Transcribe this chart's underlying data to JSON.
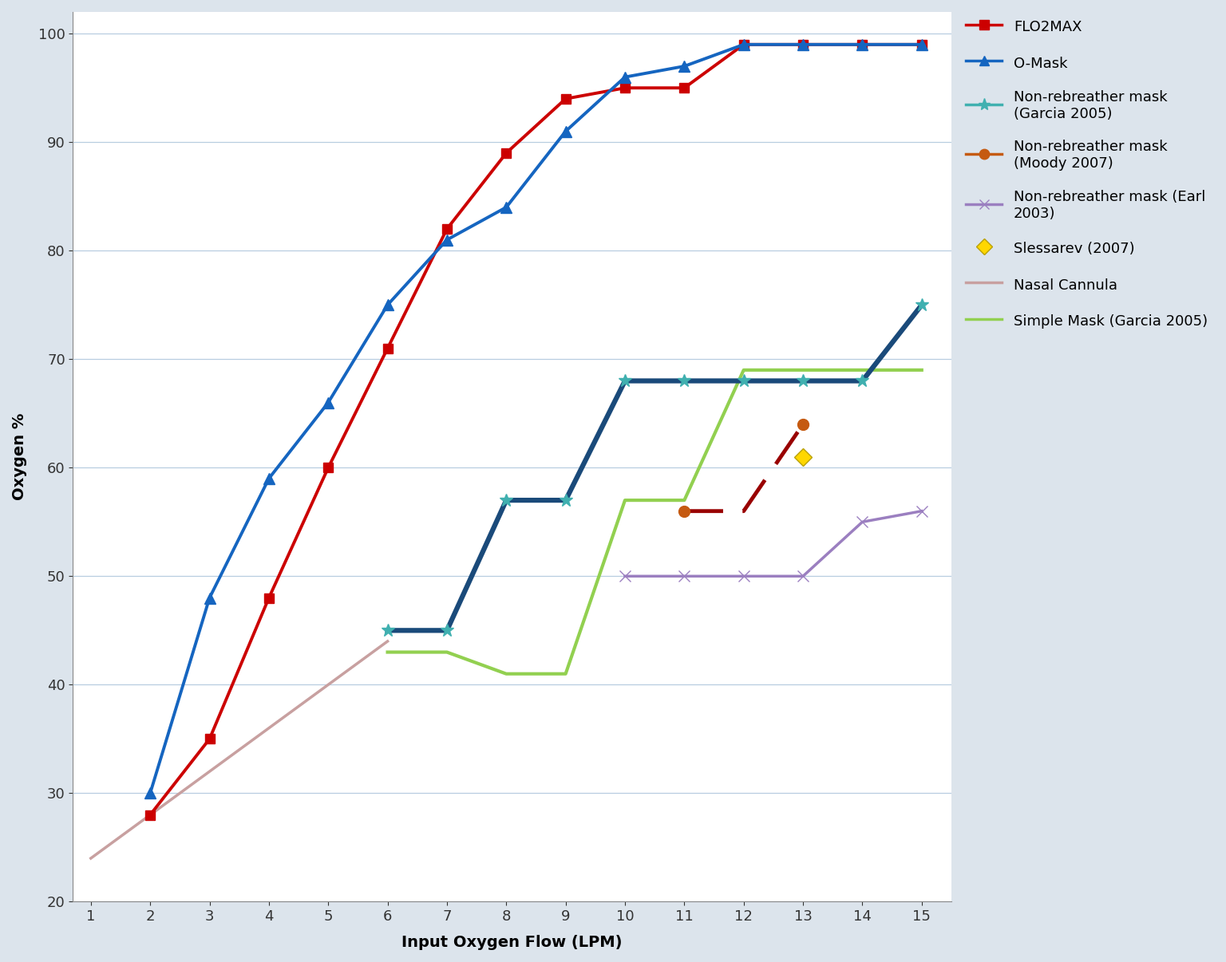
{
  "xlabel": "Input Oxygen Flow (LPM)",
  "ylabel": "Oxygen %",
  "xlim_min": 0.7,
  "xlim_max": 15.5,
  "ylim_min": 20,
  "ylim_max": 102,
  "xticks": [
    1,
    2,
    3,
    4,
    5,
    6,
    7,
    8,
    9,
    10,
    11,
    12,
    13,
    14,
    15
  ],
  "yticks": [
    20,
    30,
    40,
    50,
    60,
    70,
    80,
    90,
    100
  ],
  "fig_bg": "#dce4ec",
  "plot_bg": "#ffffff",
  "grid_color": "#b8cde0",
  "flo2max": {
    "x": [
      2,
      3,
      4,
      5,
      6,
      7,
      8,
      9,
      10,
      11,
      12,
      13,
      14,
      15
    ],
    "y": [
      28,
      35,
      48,
      60,
      71,
      82,
      89,
      94,
      95,
      95,
      99,
      99,
      99,
      99
    ],
    "color": "#cc0000",
    "lw": 2.8,
    "marker": "s",
    "ms": 8,
    "label": "FLO2MAX"
  },
  "omask": {
    "x": [
      2,
      3,
      4,
      5,
      6,
      7,
      8,
      9,
      10,
      11,
      12,
      13,
      14,
      15
    ],
    "y": [
      30,
      48,
      59,
      66,
      75,
      81,
      84,
      91,
      96,
      97,
      99,
      99,
      99,
      99
    ],
    "color": "#1565c0",
    "lw": 2.8,
    "marker": "^",
    "ms": 10,
    "label": "O-Mask"
  },
  "garcia_nb": {
    "x": [
      6,
      7,
      8,
      9,
      10,
      11,
      12,
      13,
      14,
      15
    ],
    "y": [
      45,
      45,
      57,
      57,
      68,
      68,
      68,
      68,
      68,
      75
    ],
    "color": "#1a4a7a",
    "lw": 4.5,
    "marker": "*",
    "ms": 12,
    "marker_color": "#40b0b0",
    "label": "Non-rebreather mask\n(Garcia 2005)"
  },
  "moody_nb_line": {
    "x": [
      11,
      12,
      13
    ],
    "y": [
      56,
      56,
      64
    ],
    "color": "#990000",
    "lw": 3.5,
    "linestyle": "--"
  },
  "moody_nb": {
    "x": [
      11,
      13
    ],
    "y": [
      56,
      64
    ],
    "color": "#c55a11",
    "lw": 0,
    "marker": "o",
    "ms": 10,
    "label": "Non-rebreather mask\n(Moody 2007)"
  },
  "earl_nb": {
    "x": [
      10,
      11,
      12,
      13,
      14,
      15
    ],
    "y": [
      50,
      50,
      50,
      50,
      55,
      56
    ],
    "color": "#9b7fc0",
    "lw": 2.5,
    "marker": "x",
    "ms": 10,
    "label": "Non-rebreather mask (Earl\n2003)"
  },
  "slessarev": {
    "x": [
      13
    ],
    "y": [
      61
    ],
    "color": "#ffd700",
    "lw": 0,
    "marker": "D",
    "ms": 11,
    "label": "Slessarev (2007)"
  },
  "nasal_cannula": {
    "x": [
      1,
      2,
      3,
      4,
      5,
      6
    ],
    "y": [
      24,
      28,
      32,
      36,
      40,
      44
    ],
    "color": "#c8a0a0",
    "lw": 2.5,
    "label": "Nasal Cannula"
  },
  "simple_mask": {
    "x": [
      6,
      7,
      8,
      9,
      10,
      11,
      12,
      13,
      14,
      15
    ],
    "y": [
      43,
      43,
      41,
      41,
      57,
      57,
      69,
      69,
      69,
      69
    ],
    "color": "#92d050",
    "lw": 3.0,
    "label": "Simple Mask (Garcia 2005)"
  },
  "legend_fontsize": 13,
  "axis_label_fontsize": 14,
  "tick_fontsize": 13
}
